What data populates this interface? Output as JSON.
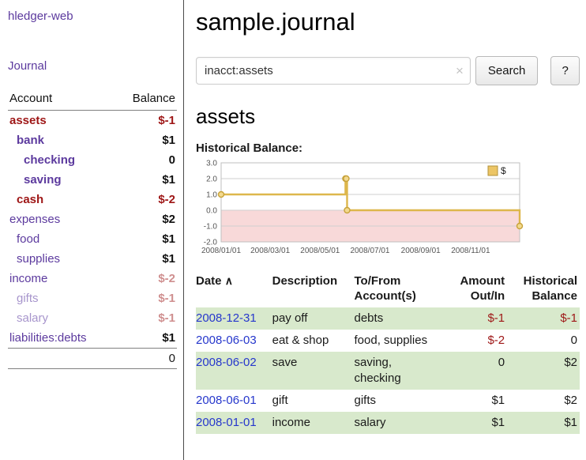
{
  "sidebar": {
    "app_title": "hledger-web",
    "journal_label": "Journal",
    "headers": {
      "account": "Account",
      "balance": "Balance"
    },
    "accounts": [
      {
        "name": "assets",
        "balance": "$-1",
        "depth": 1,
        "bold": true,
        "name_color": "neg",
        "bal_color": "neg"
      },
      {
        "name": "bank",
        "balance": "$1",
        "depth": 2,
        "bold": true,
        "name_color": "link",
        "bal_color": "pos"
      },
      {
        "name": "checking",
        "balance": "0",
        "depth": 3,
        "bold": true,
        "name_color": "link",
        "bal_color": "pos"
      },
      {
        "name": "saving",
        "balance": "$1",
        "depth": 3,
        "bold": true,
        "name_color": "link",
        "bal_color": "pos"
      },
      {
        "name": "cash",
        "balance": "$-2",
        "depth": 2,
        "bold": true,
        "name_color": "neg",
        "bal_color": "neg"
      },
      {
        "name": "expenses",
        "balance": "$2",
        "depth": 1,
        "bold": false,
        "name_color": "link",
        "bal_color": "pos"
      },
      {
        "name": "food",
        "balance": "$1",
        "depth": 2,
        "bold": false,
        "name_color": "link",
        "bal_color": "pos"
      },
      {
        "name": "supplies",
        "balance": "$1",
        "depth": 2,
        "bold": false,
        "name_color": "link",
        "bal_color": "pos"
      },
      {
        "name": "income",
        "balance": "$-2",
        "depth": 1,
        "bold": false,
        "name_color": "link",
        "bal_color": "negfade"
      },
      {
        "name": "gifts",
        "balance": "$-1",
        "depth": 2,
        "bold": false,
        "name_color": "linkfade",
        "bal_color": "negfade"
      },
      {
        "name": "salary",
        "balance": "$-1",
        "depth": 2,
        "bold": false,
        "name_color": "linkfade",
        "bal_color": "negfade"
      },
      {
        "name": "liabilities:debts",
        "balance": "$1",
        "depth": 1,
        "bold": false,
        "name_color": "link",
        "bal_color": "pos"
      }
    ],
    "total": "0"
  },
  "main": {
    "title": "sample.journal",
    "search": {
      "value": "inacct:assets",
      "clear_icon": "×",
      "button_label": "Search",
      "help_label": "?"
    },
    "account_heading": "assets",
    "chart_label": "Historical Balance:"
  },
  "chart_data": {
    "type": "line",
    "step": true,
    "title": "Historical Balance",
    "series": [
      {
        "name": "$",
        "points": [
          [
            "2008-01-01",
            1
          ],
          [
            "2008-06-01",
            2
          ],
          [
            "2008-06-02",
            2
          ],
          [
            "2008-06-03",
            0
          ],
          [
            "2008-12-31",
            -1
          ]
        ]
      }
    ],
    "ylim": [
      -2,
      3
    ],
    "yticks": [
      "3.0",
      "2.0",
      "1.0",
      "0.0",
      "-1.0",
      "-2.0"
    ],
    "xticks": [
      "2008/01/01",
      "2008/03/01",
      "2008/05/01",
      "2008/07/01",
      "2008/09/01",
      "2008/11/01"
    ],
    "x_range": [
      "2008-01-01",
      "2008-12-31"
    ],
    "legend": {
      "label": "$",
      "position": "top-right"
    },
    "line_color": "#ddb74c",
    "marker_fill": "#f3d98e",
    "marker_stroke": "#c7a23a",
    "negative_region_color": "#f8d9d9",
    "grid": true
  },
  "register": {
    "headers": [
      "Date",
      "Description",
      "To/From Account(s)",
      "Amount Out/In",
      "Historical Balance"
    ],
    "sort_indicator": "∧",
    "rows": [
      {
        "date": "2008-12-31",
        "description": "pay off",
        "accounts": "debts",
        "amount": "$-1",
        "balance": "$-1",
        "amount_neg": true,
        "balance_neg": true,
        "shaded": true
      },
      {
        "date": "2008-06-03",
        "description": "eat & shop",
        "accounts": "food, supplies",
        "amount": "$-2",
        "balance": "0",
        "amount_neg": true,
        "balance_neg": false,
        "shaded": false
      },
      {
        "date": "2008-06-02",
        "description": "save",
        "accounts": "saving, checking",
        "amount": "0",
        "balance": "$2",
        "amount_neg": false,
        "balance_neg": false,
        "shaded": true
      },
      {
        "date": "2008-06-01",
        "description": "gift",
        "accounts": "gifts",
        "amount": "$1",
        "balance": "$2",
        "amount_neg": false,
        "balance_neg": false,
        "shaded": false
      },
      {
        "date": "2008-01-01",
        "description": "income",
        "accounts": "salary",
        "amount": "$1",
        "balance": "$1",
        "amount_neg": false,
        "balance_neg": false,
        "shaded": true
      }
    ]
  }
}
